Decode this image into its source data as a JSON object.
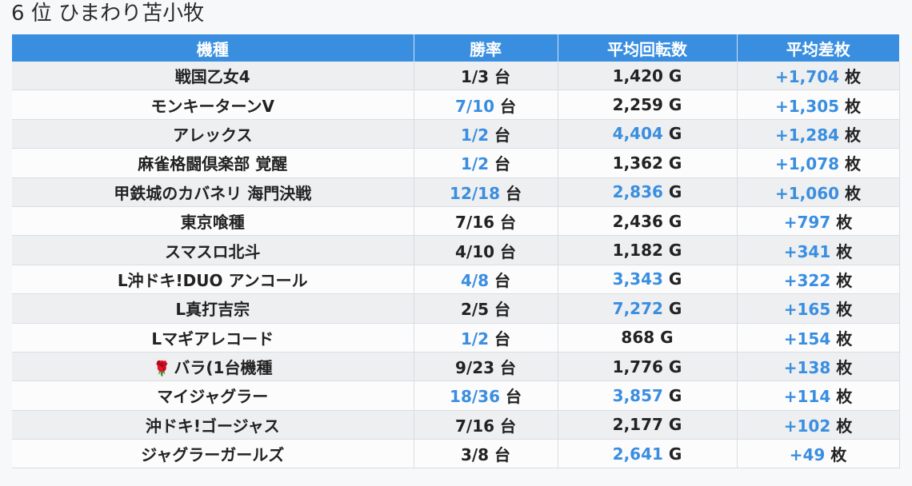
{
  "title": "6 位 ひまわり苫小牧",
  "columns": [
    "機種",
    "勝率",
    "平均回転数",
    "平均差枚"
  ],
  "units": {
    "win": "台",
    "spins": "G",
    "diff": "枚"
  },
  "colors": {
    "header_bg": "#3a8ee0",
    "highlight": "#3a8ee0",
    "rose": "#c21b2a"
  },
  "rows": [
    {
      "machine": "戦国乙女4",
      "win": "1/3",
      "win_hl": false,
      "spins": "1,420",
      "spins_hl": false,
      "diff": "+1,704",
      "diff_hl": true,
      "icon": ""
    },
    {
      "machine": "モンキーターンV",
      "win": "7/10",
      "win_hl": true,
      "spins": "2,259",
      "spins_hl": false,
      "diff": "+1,305",
      "diff_hl": true,
      "icon": ""
    },
    {
      "machine": "アレックス",
      "win": "1/2",
      "win_hl": true,
      "spins": "4,404",
      "spins_hl": true,
      "diff": "+1,284",
      "diff_hl": true,
      "icon": ""
    },
    {
      "machine": "麻雀格闘倶楽部 覚醒",
      "win": "1/2",
      "win_hl": true,
      "spins": "1,362",
      "spins_hl": false,
      "diff": "+1,078",
      "diff_hl": true,
      "icon": ""
    },
    {
      "machine": "甲鉄城のカバネリ 海門決戦",
      "win": "12/18",
      "win_hl": true,
      "spins": "2,836",
      "spins_hl": true,
      "diff": "+1,060",
      "diff_hl": true,
      "icon": ""
    },
    {
      "machine": "東京喰種",
      "win": "7/16",
      "win_hl": false,
      "spins": "2,436",
      "spins_hl": false,
      "diff": "+797",
      "diff_hl": true,
      "icon": ""
    },
    {
      "machine": "スマスロ北斗",
      "win": "4/10",
      "win_hl": false,
      "spins": "1,182",
      "spins_hl": false,
      "diff": "+341",
      "diff_hl": true,
      "icon": ""
    },
    {
      "machine": "L沖ドキ!DUO アンコール",
      "win": "4/8",
      "win_hl": true,
      "spins": "3,343",
      "spins_hl": true,
      "diff": "+322",
      "diff_hl": true,
      "icon": ""
    },
    {
      "machine": "L真打吉宗",
      "win": "2/5",
      "win_hl": false,
      "spins": "7,272",
      "spins_hl": true,
      "diff": "+165",
      "diff_hl": true,
      "icon": ""
    },
    {
      "machine": "Lマギアレコード",
      "win": "1/2",
      "win_hl": true,
      "spins": "868",
      "spins_hl": false,
      "diff": "+154",
      "diff_hl": true,
      "icon": ""
    },
    {
      "machine": "バラ(1台機種",
      "win": "9/23",
      "win_hl": false,
      "spins": "1,776",
      "spins_hl": false,
      "diff": "+138",
      "diff_hl": true,
      "icon": "rose-icon"
    },
    {
      "machine": "マイジャグラー",
      "win": "18/36",
      "win_hl": true,
      "spins": "3,857",
      "spins_hl": true,
      "diff": "+114",
      "diff_hl": true,
      "icon": ""
    },
    {
      "machine": "沖ドキ!ゴージャス",
      "win": "7/16",
      "win_hl": false,
      "spins": "2,177",
      "spins_hl": false,
      "diff": "+102",
      "diff_hl": true,
      "icon": ""
    },
    {
      "machine": "ジャグラーガールズ",
      "win": "3/8",
      "win_hl": false,
      "spins": "2,641",
      "spins_hl": true,
      "diff": "+49",
      "diff_hl": true,
      "icon": ""
    }
  ]
}
